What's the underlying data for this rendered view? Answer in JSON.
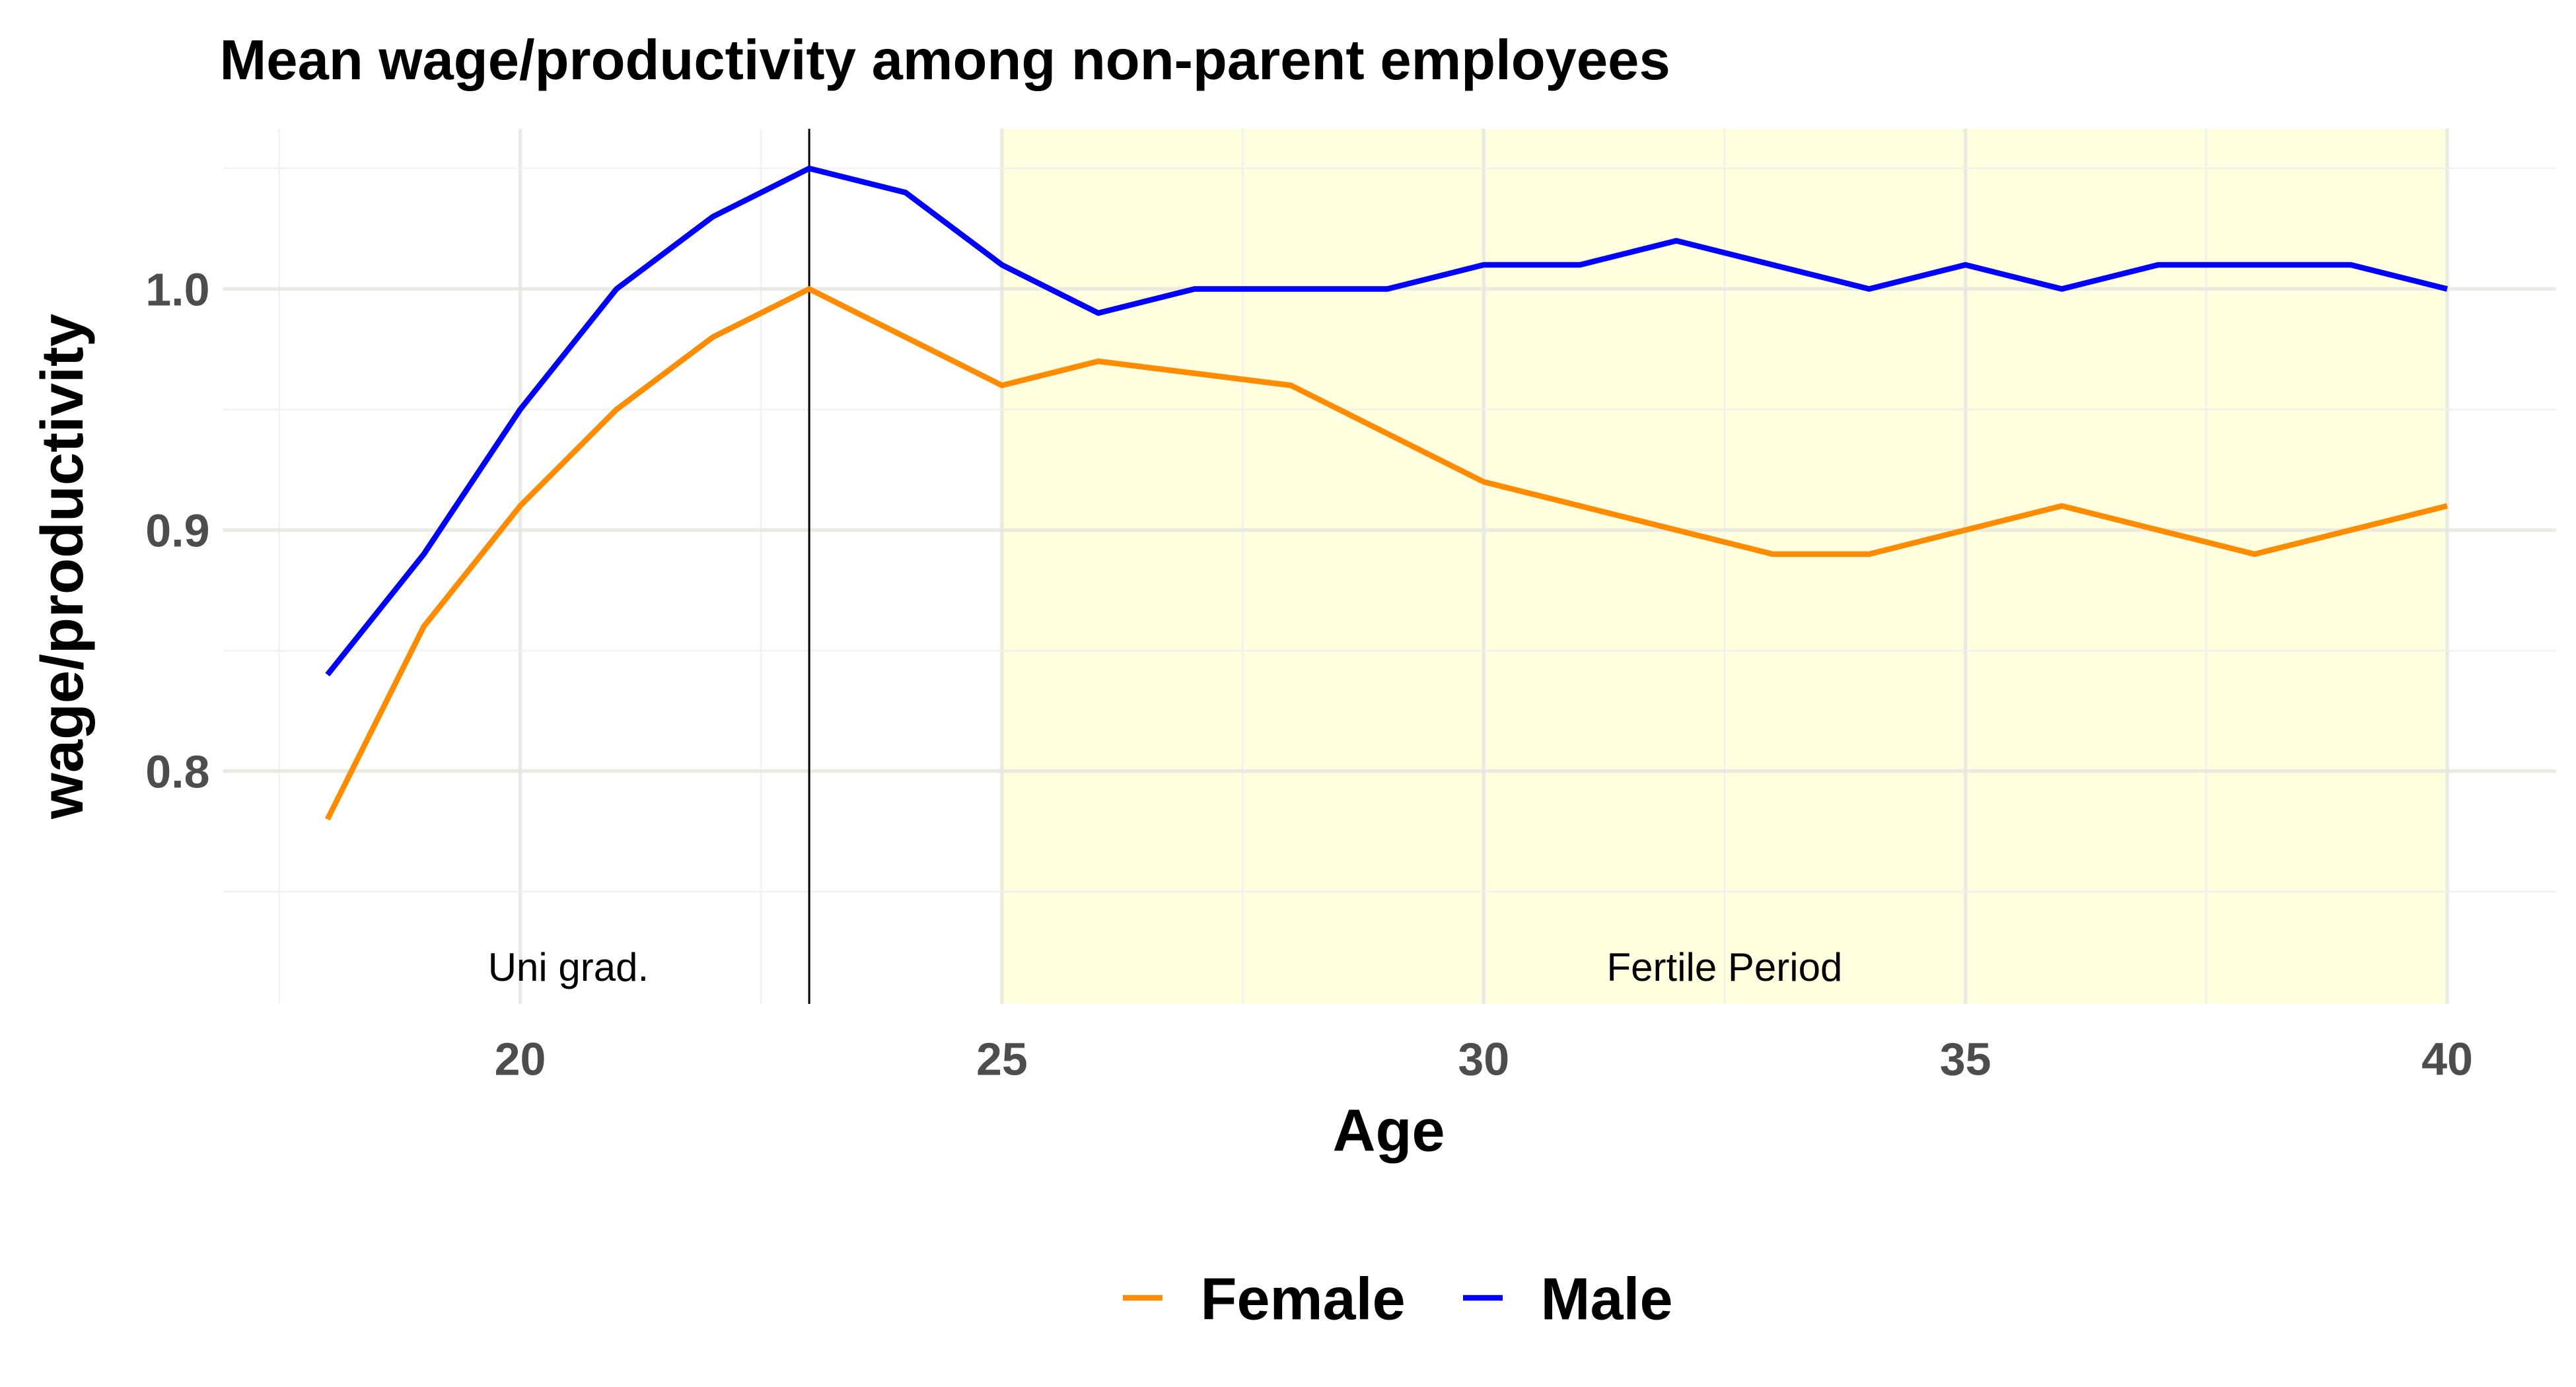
{
  "chart_data": {
    "type": "line",
    "title": "Mean wage/productivity among non-parent employees",
    "xlabel": "Age",
    "ylabel": "wage/productivity",
    "xlim": [
      17.2,
      41.1
    ],
    "ylim": [
      0.7034,
      1.0664
    ],
    "x_ticks": [
      20,
      25,
      30,
      35,
      40
    ],
    "x_tick_labels": [
      "20",
      "25",
      "30",
      "35",
      "40"
    ],
    "y_ticks": [
      0.8,
      0.9,
      1.0
    ],
    "y_tick_labels": [
      "0.8",
      "0.9",
      "1.0"
    ],
    "grid": true,
    "legend_position": "bottom",
    "x": [
      18,
      19,
      20,
      21,
      22,
      23,
      24,
      25,
      26,
      27,
      28,
      29,
      30,
      31,
      32,
      33,
      34,
      35,
      36,
      37,
      38,
      39,
      40
    ],
    "series": [
      {
        "name": "Female",
        "color": "#FF8C00",
        "values": [
          0.78,
          0.86,
          0.91,
          0.95,
          0.98,
          1.0,
          0.98,
          0.96,
          0.97,
          0.965,
          0.96,
          0.94,
          0.92,
          0.91,
          0.9,
          0.89,
          0.89,
          0.9,
          0.91,
          0.9,
          0.89,
          0.9,
          0.91
        ]
      },
      {
        "name": "Male",
        "color": "#0000FF",
        "values": [
          0.84,
          0.89,
          0.95,
          1.0,
          1.03,
          1.05,
          1.04,
          1.01,
          0.99,
          1.0,
          1.0,
          1.0,
          1.01,
          1.01,
          1.02,
          1.01,
          1.0,
          1.01,
          1.0,
          1.01,
          1.01,
          1.01,
          1.0
        ]
      }
    ],
    "annotations": [
      {
        "text": "Uni grad.",
        "x": 20.5,
        "y": 0.72
      },
      {
        "text": "Fertile Period",
        "x": 32.5,
        "y": 0.72
      }
    ],
    "vertical_line": {
      "x": 23,
      "color": "#000000"
    },
    "shaded_region": {
      "x": [
        25,
        40
      ],
      "color": "#FFFFE0",
      "label": "Fertile Period"
    }
  }
}
